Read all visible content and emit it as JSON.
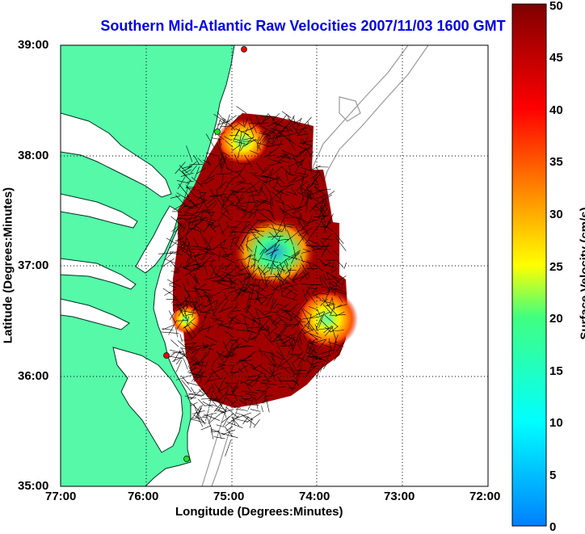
{
  "title": "Southern Mid-Atlantic Raw Velocities 2007/11/03 1600 GMT",
  "xlabel": "Longitude (Degrees:Minutes)",
  "ylabel": "Latitude (Degrees:Minutes)",
  "colorbar": {
    "label": "Surface Velocity (cm/s)",
    "min": 0,
    "max": 50,
    "ticks": [
      "0",
      "5",
      "10",
      "15",
      "20",
      "25",
      "30",
      "35",
      "40",
      "45",
      "50"
    ]
  },
  "lon_ticks": [
    "77:00",
    "76:00",
    "75:00",
    "74:00",
    "73:00",
    "72:00"
  ],
  "lat_ticks": [
    "39:00",
    "38:00",
    "37:00",
    "36:00",
    "35:00"
  ],
  "extent": {
    "lon_min": -77,
    "lon_max": -72,
    "lat_min": 35,
    "lat_max": 39
  },
  "colors": {
    "land": "#55f9a8",
    "title": "#0000ee",
    "station_red": "#ff0000",
    "station_green": "#22dd22"
  },
  "icons": [
    "station-marker-icon"
  ]
}
